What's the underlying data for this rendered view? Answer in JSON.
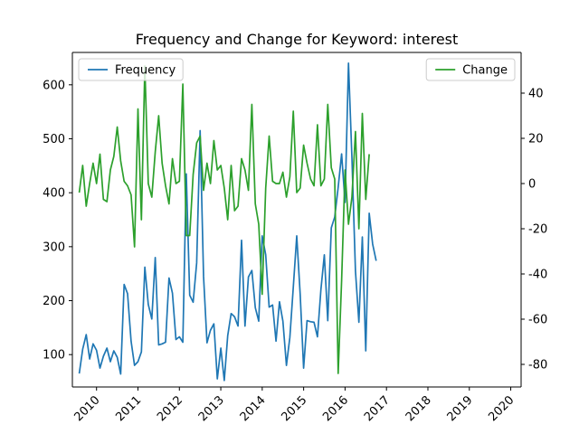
{
  "chart_data": {
    "type": "line",
    "title": "Frequency and Change for Keyword: interest",
    "xlabel": "",
    "ylabel_left": "",
    "ylabel_right": "",
    "x_tick_labels": [
      "2010",
      "2011",
      "2012",
      "2013",
      "2014",
      "2015",
      "2016",
      "2017",
      "2018",
      "2019",
      "2020"
    ],
    "x_range": [
      "2009-06",
      "2020-04"
    ],
    "y_left_ticks": [
      100,
      200,
      300,
      400,
      500,
      600
    ],
    "y_left_range": [
      40,
      660
    ],
    "y_right_ticks": [
      -80,
      -60,
      -40,
      -20,
      0,
      20,
      40
    ],
    "y_right_range": [
      -90,
      58
    ],
    "x_start": "2009-08",
    "x_step_months": 1,
    "grid": false,
    "series": [
      {
        "name": "Frequency",
        "axis": "left",
        "color": "#1f77b4",
        "legend_position": "upper-left",
        "values": [
          65,
          110,
          137,
          92,
          120,
          108,
          75,
          97,
          112,
          87,
          107,
          95,
          64,
          230,
          213,
          125,
          80,
          87,
          105,
          262,
          193,
          166,
          280,
          118,
          120,
          123,
          242,
          214,
          128,
          133,
          123,
          435,
          210,
          197,
          270,
          515,
          245,
          122,
          145,
          157,
          55,
          112,
          52,
          135,
          176,
          170,
          153,
          312,
          153,
          244,
          256,
          187,
          162,
          320,
          285,
          188,
          192,
          125,
          198,
          162,
          80,
          132,
          225,
          320,
          212,
          75,
          163,
          161,
          160,
          133,
          220,
          285,
          163,
          335,
          355,
          410,
          472,
          382,
          640,
          465,
          255,
          160,
          318,
          107,
          362,
          305,
          274
        ]
      },
      {
        "name": "Change",
        "axis": "right",
        "color": "#2ca02c",
        "legend_position": "upper-right",
        "values": [
          -4,
          8,
          -10,
          0,
          9,
          0,
          13,
          -7,
          -8,
          6,
          12,
          25,
          10,
          1,
          -1,
          -5,
          -28,
          33,
          -16,
          52,
          0,
          -6,
          14,
          30,
          9,
          -1,
          -9,
          11,
          0,
          1,
          44,
          -23,
          -23,
          4,
          18,
          21,
          -3,
          9,
          0,
          19,
          6,
          8,
          -2,
          -16,
          8,
          -12,
          -10,
          11,
          6,
          -3,
          35,
          -9,
          -18,
          -49,
          -2,
          21,
          1,
          0,
          0,
          5,
          -6,
          3,
          32,
          -4,
          -2,
          17,
          9,
          2,
          -1,
          26,
          -1,
          2,
          35,
          7,
          2,
          -84,
          -43,
          6,
          -18,
          -6,
          23,
          -20,
          31,
          -7,
          13
        ]
      }
    ]
  }
}
